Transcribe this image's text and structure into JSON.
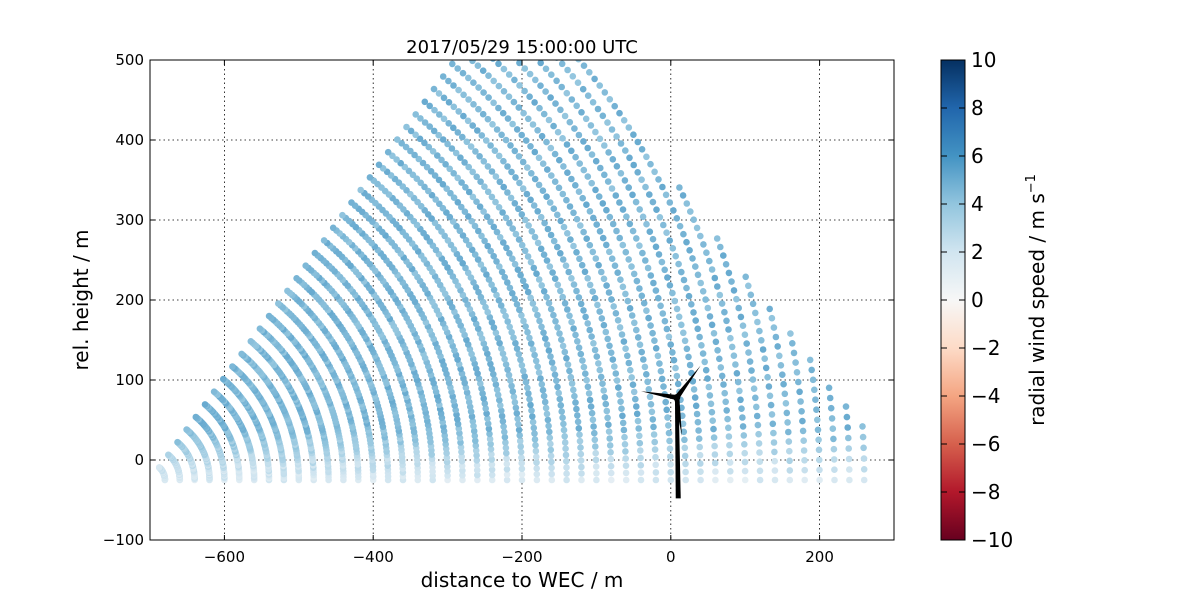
{
  "chart_data": {
    "type": "scatter",
    "title": "2017/05/29 15:00:00 UTC",
    "xlabel": "distance to WEC / m",
    "ylabel": "rel. height / m",
    "xlim": [
      -700,
      300
    ],
    "ylim": [
      -100,
      500
    ],
    "xticks": [
      -600,
      -400,
      -200,
      0,
      200
    ],
    "yticks": [
      -100,
      0,
      100,
      200,
      300,
      400,
      500
    ],
    "grid": true,
    "scan": {
      "origin_x": -700,
      "origin_y": -25,
      "range_min_m": 20,
      "range_max_m": 970,
      "range_step_m": 20,
      "elevation_min_deg": 0,
      "elevation_max_deg": 52,
      "elevation_step_deg": 0.8,
      "right_boundary_line": [
        [
          -120,
          500
        ],
        [
          265,
          35
        ]
      ],
      "top_boundary_y": 500,
      "typical_radial_speed_ms": 4.5
    },
    "wind_turbine": {
      "tower_base": [
        10,
        -48
      ],
      "hub": [
        8,
        78
      ],
      "blade_tips": [
        [
          -40,
          86
        ],
        [
          40,
          118
        ],
        [
          15,
          30
        ]
      ],
      "color": "#000000"
    },
    "colorbar": {
      "label": "radial wind speed / m s",
      "label_superscript": "−1",
      "min": -10,
      "max": 10,
      "ticks": [
        10,
        8,
        6,
        4,
        2,
        0,
        -2,
        -4,
        -6,
        -8,
        -10
      ],
      "tick_labels": [
        "10",
        "8",
        "6",
        "4",
        "2",
        "0",
        "−2",
        "−4",
        "−6",
        "−8",
        "−10"
      ],
      "colormap": "RdBu",
      "stops": [
        "#67001f",
        "#b2182b",
        "#d6604d",
        "#f4a582",
        "#fddbc7",
        "#f7f7f7",
        "#d1e5f0",
        "#92c5de",
        "#4393c3",
        "#2166ac",
        "#053061"
      ]
    }
  }
}
